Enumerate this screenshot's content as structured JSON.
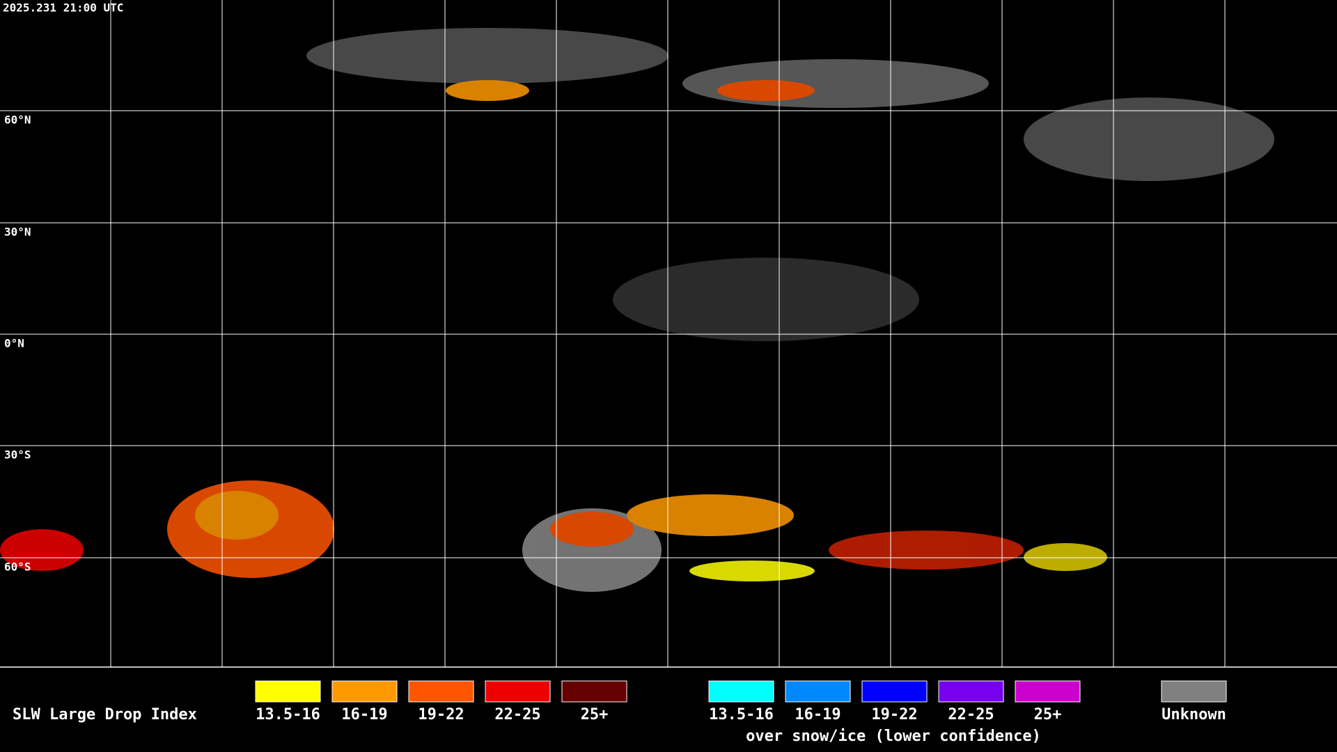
{
  "header": {
    "timestamp": "2025.231 21:00 UTC"
  },
  "map": {
    "latitude_labels": [
      "60°N",
      "30°N",
      "0°N",
      "30°S",
      "60°S"
    ]
  },
  "legend": {
    "title": "SLW Large Drop Index",
    "items": [
      {
        "label": "13.5-16",
        "color": "#ffff00"
      },
      {
        "label": "16-19",
        "color": "#ff9900"
      },
      {
        "label": "19-22",
        "color": "#ff5500"
      },
      {
        "label": "22-25",
        "color": "#ee0000"
      },
      {
        "label": "25+",
        "color": "#660000"
      }
    ],
    "snow_ice_items": [
      {
        "label": "13.5-16",
        "color": "#00ffff"
      },
      {
        "label": "16-19",
        "color": "#0088ff"
      },
      {
        "label": "19-22",
        "color": "#0000ff"
      },
      {
        "label": "22-25",
        "color": "#7700ee"
      },
      {
        "label": "25+",
        "color": "#cc00cc"
      }
    ],
    "snow_ice_caption": "over snow/ice (lower confidence)",
    "unknown": {
      "label": "Unknown",
      "color": "#808080"
    }
  }
}
